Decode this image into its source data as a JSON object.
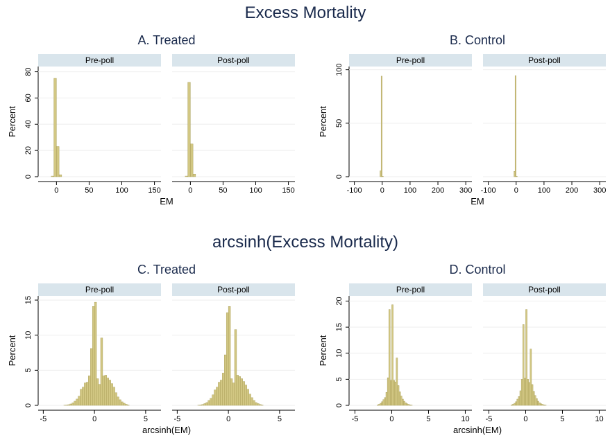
{
  "headings": [
    "Excess Mortality",
    "arcsinh(Excess Mortality)"
  ],
  "chart_data": [
    {
      "type": "histogram",
      "title": "A. Treated",
      "xlabel": "EM",
      "ylabel": "Percent",
      "color": "#d2c783",
      "grid": true,
      "xlim": [
        -28,
        160
      ],
      "ylim": [
        0,
        84
      ],
      "xticks": [
        0,
        50,
        100,
        150
      ],
      "yticks": [
        0,
        20,
        40,
        60,
        80
      ],
      "facets": [
        {
          "label": "Pre-poll",
          "bins": [
            -8,
            -4,
            0,
            4,
            8
          ],
          "values": [
            0.5,
            75,
            23,
            1.5
          ]
        },
        {
          "label": "Post-poll",
          "bins": [
            -8,
            -4,
            0,
            4,
            8
          ],
          "values": [
            0.5,
            72,
            25,
            2
          ]
        }
      ]
    },
    {
      "type": "histogram",
      "title": "B. Control",
      "xlabel": "EM",
      "ylabel": "Percent",
      "color": "#d2c783",
      "grid": true,
      "xlim": [
        -119,
        322
      ],
      "ylim": [
        0,
        103
      ],
      "xticks": [
        -100,
        0,
        100,
        200,
        300
      ],
      "yticks": [
        0,
        50,
        100
      ],
      "facets": [
        {
          "label": "Pre-poll",
          "bins": [
            -8,
            -4,
            0,
            4
          ],
          "values": [
            5.5,
            94,
            0.5
          ]
        },
        {
          "label": "Post-poll",
          "bins": [
            -8,
            -4,
            0,
            4
          ],
          "values": [
            5,
            94.5,
            0.5
          ]
        }
      ]
    },
    {
      "type": "histogram",
      "title": "C. Treated",
      "xlabel": "arcsinh(EM)",
      "ylabel": "Percent",
      "color": "#d2c783",
      "grid": true,
      "xlim": [
        -5.5,
        6.5
      ],
      "ylim": [
        0,
        15.6
      ],
      "xticks": [
        -5,
        0,
        5
      ],
      "yticks": [
        0,
        5,
        10,
        15
      ],
      "facets": [
        {
          "label": "Pre-poll",
          "bins": [
            -3,
            -2.8,
            -2.6,
            -2.4,
            -2.2,
            -2,
            -1.8,
            -1.6,
            -1.4,
            -1.2,
            -1,
            -0.8,
            -0.6,
            -0.4,
            -0.2,
            0,
            0.2,
            0.4,
            0.6,
            0.8,
            1,
            1.2,
            1.4,
            1.6,
            1.8,
            2,
            2.2,
            2.4,
            2.6,
            2.8,
            3,
            3.2,
            3.4
          ],
          "values": [
            0.02,
            0.05,
            0.1,
            0.2,
            0.35,
            0.6,
            0.9,
            1.3,
            2.3,
            2.6,
            3.2,
            3.3,
            4.2,
            8.1,
            14.1,
            14.7,
            3.8,
            3,
            9.6,
            4.2,
            4.3,
            3.9,
            3.6,
            3.1,
            2.6,
            1.8,
            1.2,
            0.8,
            0.5,
            0.3,
            0.15,
            0.05
          ]
        },
        {
          "label": "Post-poll",
          "bins": [
            -3,
            -2.8,
            -2.6,
            -2.4,
            -2.2,
            -2,
            -1.8,
            -1.6,
            -1.4,
            -1.2,
            -1,
            -0.8,
            -0.6,
            -0.4,
            -0.2,
            0,
            0.2,
            0.4,
            0.6,
            0.8,
            1,
            1.2,
            1.4,
            1.6,
            1.8,
            2,
            2.2,
            2.4,
            2.6,
            2.8,
            3,
            3.2,
            3.4
          ],
          "values": [
            0.03,
            0.06,
            0.12,
            0.25,
            0.4,
            0.7,
            1,
            1.5,
            2.2,
            2.6,
            3.3,
            3.6,
            4.6,
            7.2,
            13.2,
            14.1,
            3.8,
            3.2,
            10.8,
            4.3,
            4.1,
            3.8,
            3.4,
            2.9,
            2.3,
            1.6,
            1.1,
            0.7,
            0.4,
            0.25,
            0.12,
            0.05
          ]
        }
      ]
    },
    {
      "type": "histogram",
      "title": "D. Control",
      "xlabel": "arcsinh(EM)",
      "ylabel": "Percent",
      "color": "#d2c783",
      "grid": true,
      "xlim": [
        -5.8,
        10.9
      ],
      "ylim": [
        0,
        21
      ],
      "xticks": [
        -5,
        0,
        5,
        10
      ],
      "yticks": [
        0,
        5,
        10,
        15,
        20
      ],
      "facets": [
        {
          "label": "Pre-poll",
          "bins": [
            -2,
            -1.8,
            -1.6,
            -1.4,
            -1.2,
            -1,
            -0.8,
            -0.6,
            -0.4,
            -0.2,
            0,
            0.2,
            0.4,
            0.6,
            0.8,
            1,
            1.2,
            1.4,
            1.6,
            1.8,
            2,
            2.2,
            2.4,
            2.6,
            2.8
          ],
          "values": [
            0.1,
            0.2,
            0.4,
            0.7,
            1.1,
            1.5,
            2.5,
            5.3,
            18.4,
            4.8,
            19.3,
            4.8,
            4.5,
            9.1,
            3.8,
            2.6,
            1.8,
            1.2,
            0.8,
            0.5,
            0.3,
            0.2,
            0.1,
            0.05
          ]
        },
        {
          "label": "Post-poll",
          "bins": [
            -2,
            -1.8,
            -1.6,
            -1.4,
            -1.2,
            -1,
            -0.8,
            -0.6,
            -0.4,
            -0.2,
            0,
            0.2,
            0.4,
            0.6,
            0.8,
            1,
            1.2,
            1.4,
            1.6,
            1.8,
            2,
            2.2,
            2.4,
            2.6,
            2.8
          ],
          "values": [
            0.1,
            0.2,
            0.4,
            0.7,
            1.2,
            1.7,
            2.8,
            5,
            15.5,
            5.2,
            18.4,
            5,
            4.4,
            10.8,
            4,
            2.7,
            1.9,
            1.3,
            0.8,
            0.5,
            0.3,
            0.2,
            0.1,
            0.05
          ]
        }
      ]
    }
  ]
}
